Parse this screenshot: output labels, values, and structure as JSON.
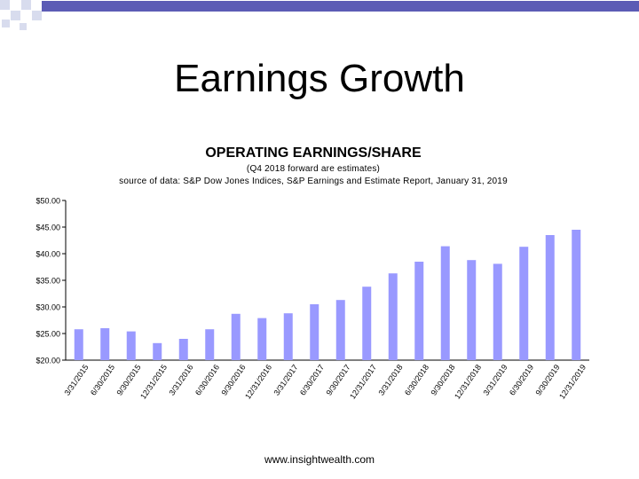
{
  "slide": {
    "title": "Earnings Growth",
    "footer": "www.insightwealth.com"
  },
  "colors": {
    "bar": "#9999ff",
    "deco_fill": "#5b5bb5",
    "deco_square": "#d8dcee"
  },
  "chart_data": {
    "type": "bar",
    "title": "OPERATING EARNINGS/SHARE",
    "subtitle_lines": [
      "(Q4 2018 forward are estimates)",
      "source of data: S&P Dow Jones Indices, S&P Earnings and Estimate Report, January 31, 2019"
    ],
    "xlabel": "",
    "ylabel": "",
    "ylim": [
      20,
      50
    ],
    "grid": false,
    "legend": "none",
    "y_ticks": [
      {
        "value": 20,
        "label": "$20.00"
      },
      {
        "value": 25,
        "label": "$25.00"
      },
      {
        "value": 30,
        "label": "$30.00"
      },
      {
        "value": 35,
        "label": "$35.00"
      },
      {
        "value": 40,
        "label": "$40.00"
      },
      {
        "value": 45,
        "label": "$45.00"
      },
      {
        "value": 50,
        "label": "$50.00"
      }
    ],
    "categories": [
      "3/31/2015",
      "6/30/2015",
      "9/30/2015",
      "12/31/2015",
      "3/31/2016",
      "6/30/2016",
      "9/30/2016",
      "12/31/2016",
      "3/31/2017",
      "6/30/2017",
      "9/30/2017",
      "12/31/2017",
      "3/31/2018",
      "6/30/2018",
      "9/30/2018",
      "12/31/2018",
      "3/31/2019",
      "6/30/2019",
      "9/30/2019",
      "12/31/2019"
    ],
    "values": [
      25.8,
      26.0,
      25.4,
      23.2,
      24.0,
      25.8,
      28.7,
      27.9,
      28.8,
      30.5,
      31.3,
      33.8,
      36.3,
      38.5,
      41.4,
      38.8,
      38.1,
      41.3,
      43.5,
      44.5
    ]
  }
}
